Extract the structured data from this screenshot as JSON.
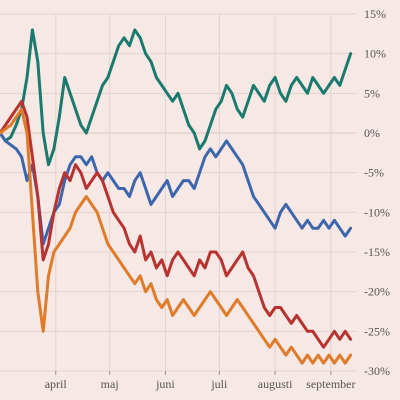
{
  "chart_data": {
    "type": "line",
    "title": "",
    "xlabel": "",
    "ylabel": "",
    "grid": true,
    "legend": "none",
    "x": [
      "03-01",
      "03-04",
      "03-07",
      "03-10",
      "03-13",
      "03-16",
      "03-19",
      "03-22",
      "03-25",
      "03-28",
      "03-31",
      "04-03",
      "04-06",
      "04-09",
      "04-12",
      "04-15",
      "04-18",
      "04-21",
      "04-24",
      "04-27",
      "04-30",
      "05-03",
      "05-06",
      "05-09",
      "05-12",
      "05-15",
      "05-18",
      "05-21",
      "05-24",
      "05-27",
      "05-30",
      "06-02",
      "06-05",
      "06-08",
      "06-11",
      "06-14",
      "06-17",
      "06-20",
      "06-23",
      "06-26",
      "06-29",
      "07-02",
      "07-05",
      "07-08",
      "07-11",
      "07-14",
      "07-17",
      "07-20",
      "07-23",
      "07-26",
      "07-29",
      "08-01",
      "08-04",
      "08-07",
      "08-10",
      "08-13",
      "08-16",
      "08-19",
      "08-22",
      "08-25",
      "08-28",
      "08-31",
      "09-03",
      "09-06",
      "09-09",
      "09-12"
    ],
    "x_ticks": [
      {
        "date": "04-01",
        "label": "april"
      },
      {
        "date": "05-01",
        "label": "maj"
      },
      {
        "date": "06-01",
        "label": "juni"
      },
      {
        "date": "07-01",
        "label": "juli"
      },
      {
        "date": "08-01",
        "label": "augusti"
      },
      {
        "date": "09-01",
        "label": "september"
      }
    ],
    "y_ticks": [
      {
        "value": 15,
        "label": "15%"
      },
      {
        "value": 10,
        "label": "10%"
      },
      {
        "value": 5,
        "label": "5%"
      },
      {
        "value": 0,
        "label": "0%"
      },
      {
        "value": -5,
        "label": "-5%"
      },
      {
        "value": -10,
        "label": "-10%"
      },
      {
        "value": -15,
        "label": "-15%"
      },
      {
        "value": -20,
        "label": "-20%"
      },
      {
        "value": -25,
        "label": "-25%"
      },
      {
        "value": -30,
        "label": "-30%"
      }
    ],
    "ylim": [
      -30,
      15
    ],
    "xlim": [
      "03-01",
      "09-15"
    ],
    "series": [
      {
        "color": "#1a7a6e",
        "values": [
          0,
          -1,
          -0.5,
          1,
          3,
          7,
          13,
          9,
          0,
          -4,
          -2,
          2,
          7,
          5,
          3,
          1,
          0,
          2,
          4,
          6,
          7,
          9,
          11,
          12,
          11,
          13,
          12,
          10,
          9,
          7,
          6,
          5,
          4,
          5,
          3,
          1,
          0,
          -2,
          -1,
          1,
          3,
          4,
          6,
          5,
          3,
          2,
          4,
          6,
          5,
          4,
          6,
          7,
          5,
          4,
          6,
          7,
          6,
          5,
          7,
          6,
          5,
          6,
          7,
          6,
          8,
          10
        ]
      },
      {
        "color": "#3d66ad",
        "values": [
          0,
          -1,
          -1.5,
          -2,
          -3,
          -6,
          -4,
          -8,
          -14,
          -12,
          -10,
          -9,
          -6,
          -4,
          -3,
          -3,
          -4,
          -3,
          -5,
          -6,
          -5,
          -6,
          -7,
          -7,
          -8,
          -6,
          -5,
          -7,
          -9,
          -8,
          -7,
          -6,
          -8,
          -7,
          -6,
          -6,
          -7,
          -5,
          -3,
          -2,
          -3,
          -2,
          -1,
          -2,
          -3,
          -4,
          -6,
          -8,
          -9,
          -10,
          -11,
          -12,
          -10,
          -9,
          -10,
          -11,
          -12,
          -11,
          -12,
          -12,
          -11,
          -12,
          -11,
          -12,
          -13,
          -12
        ]
      },
      {
        "color": "#b83230",
        "values": [
          0,
          1,
          2,
          3,
          4,
          2,
          -3,
          -8,
          -16,
          -14,
          -10,
          -7,
          -5,
          -6,
          -4,
          -5,
          -7,
          -6,
          -5,
          -6,
          -8,
          -10,
          -11,
          -12,
          -14,
          -15,
          -13,
          -16,
          -15,
          -17,
          -16,
          -18,
          -16,
          -15,
          -16,
          -17,
          -18,
          -16,
          -17,
          -15,
          -15,
          -16,
          -18,
          -17,
          -16,
          -15,
          -17,
          -18,
          -20,
          -22,
          -23,
          -22,
          -22,
          -23,
          -24,
          -23,
          -24,
          -25,
          -25,
          -26,
          -27,
          -26,
          -25,
          -26,
          -25,
          -26
        ]
      },
      {
        "color": "#e07b2a",
        "values": [
          0,
          0.5,
          1,
          2,
          3,
          0,
          -10,
          -20,
          -25,
          -18,
          -15,
          -14,
          -13,
          -12,
          -10,
          -9,
          -8,
          -9,
          -10,
          -12,
          -14,
          -15,
          -16,
          -17,
          -18,
          -19,
          -18,
          -20,
          -19,
          -21,
          -22,
          -21,
          -23,
          -22,
          -21,
          -22,
          -23,
          -22,
          -21,
          -20,
          -21,
          -22,
          -23,
          -22,
          -21,
          -22,
          -23,
          -24,
          -25,
          -26,
          -27,
          -26,
          -27,
          -28,
          -27,
          -28,
          -29,
          -28,
          -29,
          -28,
          -29,
          -28,
          -29,
          -28,
          -29,
          -28
        ]
      }
    ]
  }
}
